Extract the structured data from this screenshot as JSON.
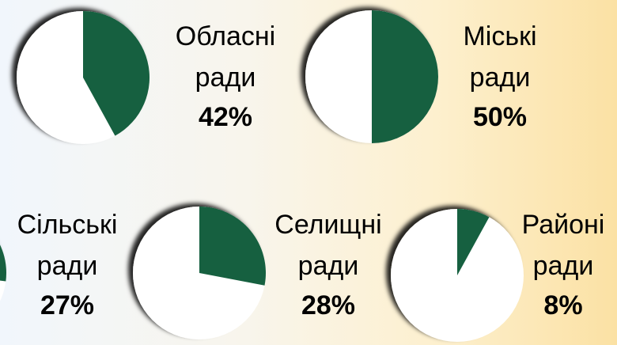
{
  "chart_data": [
    {
      "type": "pie",
      "title": "Обласні ради",
      "values": [
        42
      ],
      "value_labels": [
        "42%"
      ],
      "color": "#17603f"
    },
    {
      "type": "pie",
      "title": "Міські ради",
      "values": [
        50
      ],
      "value_labels": [
        "50%"
      ],
      "color": "#17603f"
    },
    {
      "type": "pie",
      "title": "Сільські ради",
      "values": [
        27
      ],
      "value_labels": [
        "27%"
      ],
      "color": "#17603f"
    },
    {
      "type": "pie",
      "title": "Селищні ради",
      "values": [
        28
      ],
      "value_labels": [
        "28%"
      ],
      "color": "#17603f"
    },
    {
      "type": "pie",
      "title": "Районі ради",
      "values": [
        8
      ],
      "value_labels": [
        "8%"
      ],
      "color": "#17603f"
    }
  ]
}
